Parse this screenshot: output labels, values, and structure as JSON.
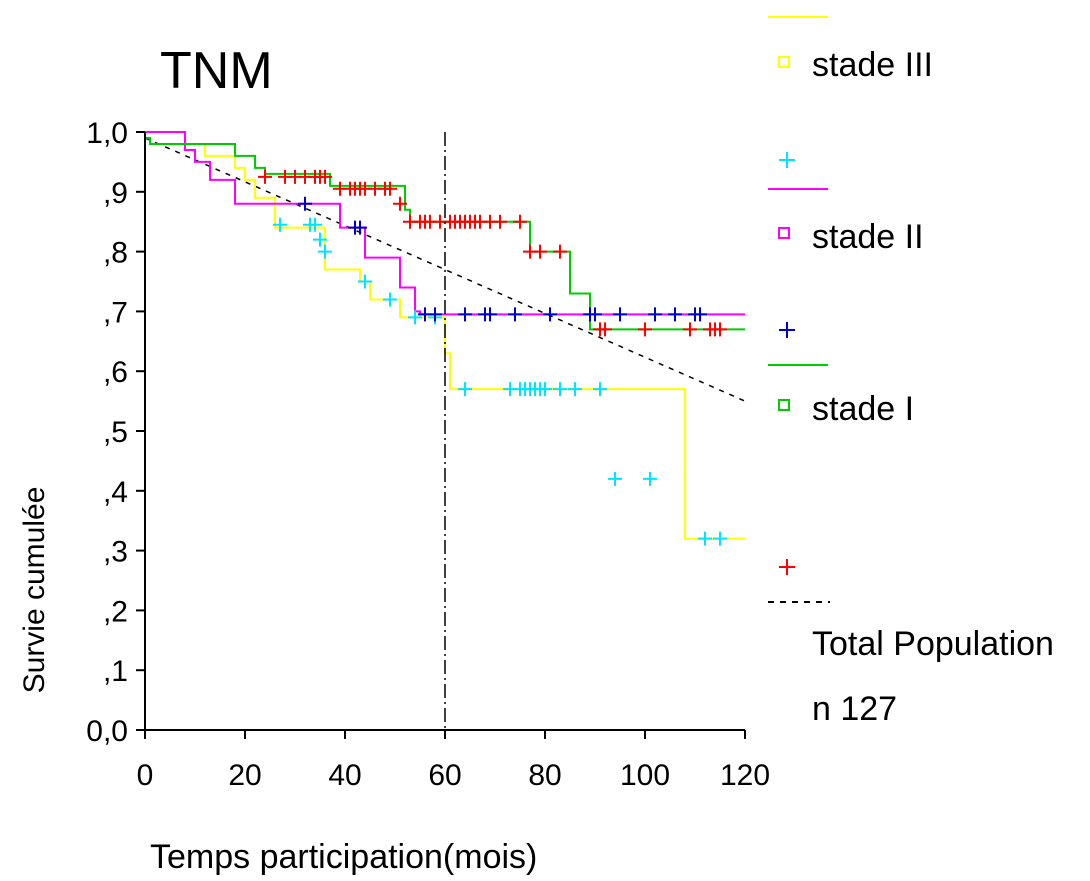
{
  "chart_data": {
    "type": "line",
    "title": "TNM",
    "xlabel": "Temps participation(mois)",
    "ylabel": "Survie cumulée",
    "xlim": [
      0,
      120
    ],
    "ylim": [
      0,
      1.0
    ],
    "xticks": [
      0,
      20,
      40,
      60,
      80,
      100,
      120
    ],
    "xtick_labels": [
      "0",
      "20",
      "40",
      "60",
      "80",
      "100",
      "120"
    ],
    "yticks": [
      0,
      0.1,
      0.2,
      0.3,
      0.4,
      0.5,
      0.6,
      0.7,
      0.8,
      0.9,
      1.0
    ],
    "ytick_labels": [
      "0,0",
      ",1",
      ",2",
      ",3",
      ",4",
      ",5",
      ",6",
      ",7",
      ",8",
      ",9",
      "1,0"
    ],
    "reference_line_x": 60,
    "grid": false,
    "legend_position": "right",
    "series": [
      {
        "name": "stade III",
        "color": "#ffff00",
        "censor_color": "#00e5ff",
        "step_x": [
          0,
          8,
          12,
          18,
          20,
          22,
          26,
          36,
          37,
          43,
          45,
          51,
          55,
          60,
          61,
          108,
          120
        ],
        "step_y": [
          1.0,
          0.98,
          0.96,
          0.94,
          0.92,
          0.89,
          0.84,
          0.77,
          0.77,
          0.75,
          0.72,
          0.69,
          0.69,
          0.63,
          0.57,
          0.32,
          0.32
        ],
        "censored_x": [
          27,
          33,
          34,
          35,
          36,
          44,
          49,
          54,
          58,
          64,
          73,
          75,
          76,
          77,
          78,
          79,
          80,
          83,
          86,
          91,
          94,
          101,
          112,
          115
        ],
        "censored_y": [
          0.845,
          0.845,
          0.845,
          0.82,
          0.8,
          0.75,
          0.72,
          0.69,
          0.69,
          0.57,
          0.57,
          0.57,
          0.57,
          0.57,
          0.57,
          0.57,
          0.57,
          0.57,
          0.57,
          0.57,
          0.42,
          0.42,
          0.32,
          0.32
        ]
      },
      {
        "name": "stade II",
        "color": "#ff00ff",
        "censor_color": "#0000cc",
        "step_x": [
          0,
          8,
          10,
          13,
          18,
          32,
          39,
          44,
          51,
          54,
          55,
          120
        ],
        "step_y": [
          1.0,
          0.97,
          0.95,
          0.92,
          0.88,
          0.88,
          0.84,
          0.79,
          0.74,
          0.7,
          0.695,
          0.695
        ],
        "censored_x": [
          32,
          42,
          43,
          56,
          58,
          64,
          68,
          69,
          74,
          81,
          89,
          90,
          95,
          102,
          106,
          110,
          111
        ],
        "censored_y": [
          0.88,
          0.84,
          0.84,
          0.695,
          0.695,
          0.695,
          0.695,
          0.695,
          0.695,
          0.695,
          0.695,
          0.695,
          0.695,
          0.695,
          0.695,
          0.695,
          0.695
        ]
      },
      {
        "name": "stade I",
        "color": "#00cc00",
        "censor_color": "#ff0000",
        "step_x": [
          0,
          1,
          18,
          22,
          24,
          37,
          52,
          53,
          77,
          85,
          89,
          120
        ],
        "step_y": [
          0.99,
          0.98,
          0.96,
          0.94,
          0.93,
          0.91,
          0.87,
          0.85,
          0.8,
          0.73,
          0.67,
          0.67
        ],
        "censored_x": [
          24,
          28,
          30,
          32,
          34,
          35,
          36,
          39,
          41,
          42,
          43,
          44,
          46,
          48,
          49,
          51,
          53,
          55,
          56,
          57,
          59,
          61,
          62,
          63,
          64,
          65,
          66,
          67,
          69,
          71,
          75,
          77,
          79,
          83,
          91,
          92,
          100,
          109,
          113,
          114,
          115
        ],
        "censored_y": [
          0.925,
          0.925,
          0.925,
          0.925,
          0.925,
          0.925,
          0.925,
          0.905,
          0.905,
          0.905,
          0.905,
          0.905,
          0.905,
          0.905,
          0.905,
          0.88,
          0.85,
          0.85,
          0.85,
          0.85,
          0.85,
          0.85,
          0.85,
          0.85,
          0.85,
          0.85,
          0.85,
          0.85,
          0.85,
          0.85,
          0.85,
          0.8,
          0.8,
          0.8,
          0.67,
          0.67,
          0.67,
          0.67,
          0.67,
          0.67,
          0.67
        ]
      },
      {
        "name": "Total Population",
        "sublabel": "n 127",
        "color": "#000000",
        "dashed": true,
        "line_x": [
          0,
          120
        ],
        "line_y": [
          0.99,
          0.55
        ]
      }
    ]
  }
}
